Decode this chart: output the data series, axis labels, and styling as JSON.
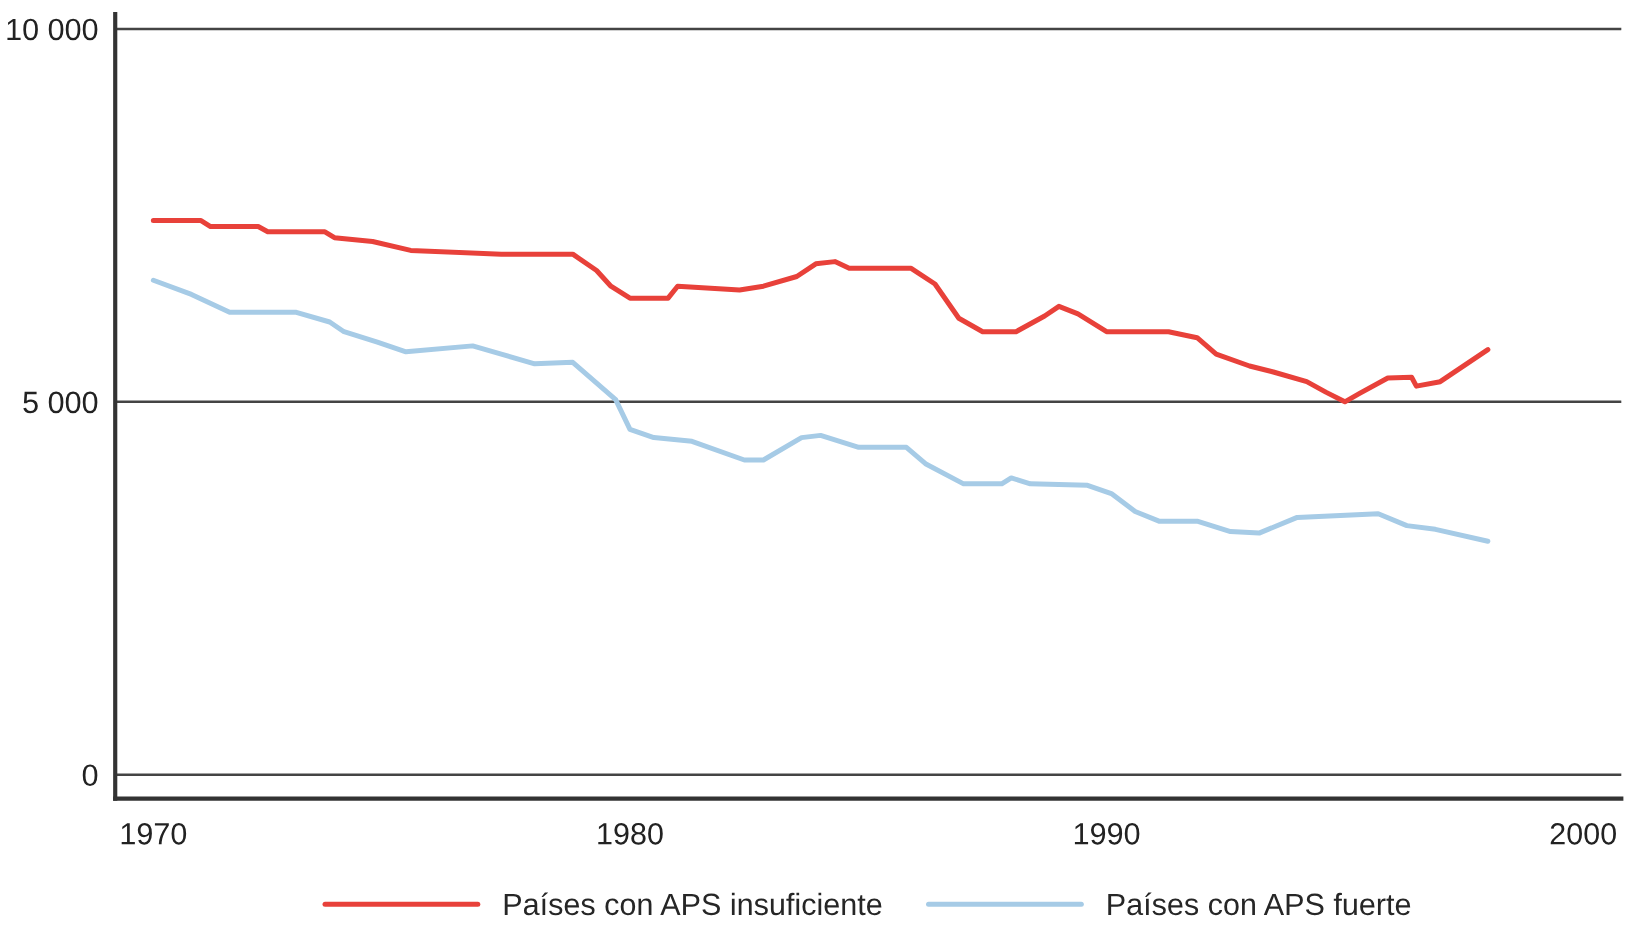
{
  "chart_data": {
    "type": "line",
    "xlim": [
      1969.2,
      2000.8
    ],
    "ylim": [
      -320,
      10200
    ],
    "xticks": [
      1970,
      1980,
      1990,
      2000
    ],
    "yticks": [
      {
        "value": 0,
        "label": "0"
      },
      {
        "value": 5000,
        "label": "5 000"
      },
      {
        "value": 10000,
        "label": "10 000"
      }
    ],
    "grid": "y",
    "legend": "bottom",
    "series": [
      {
        "name": "Países con APS insuficiente",
        "color": "#e8413a",
        "x": [
          1970,
          1971,
          1971.2,
          1972.2,
          1972.4,
          1973.6,
          1973.8,
          1974.6,
          1975.4,
          1977.3,
          1978.8,
          1979.3,
          1979.6,
          1980,
          1980.8,
          1981.0,
          1982.3,
          1982.8,
          1983.5,
          1983.9,
          1984.3,
          1984.6,
          1985.9,
          1986.4,
          1986.9,
          1987.4,
          1988.1,
          1988.7,
          1989.0,
          1989.4,
          1990.0,
          1991.3,
          1991.9,
          1992.3,
          1993.0,
          1993.5,
          1994.2,
          1994.6,
          1995.0,
          1995.3,
          1995.9,
          1996.4,
          1996.5,
          1997.0,
          1998.0
        ],
        "values": [
          7430,
          7430,
          7350,
          7350,
          7280,
          7280,
          7200,
          7150,
          7030,
          6980,
          6980,
          6760,
          6550,
          6390,
          6390,
          6550,
          6500,
          6550,
          6680,
          6850,
          6880,
          6790,
          6790,
          6580,
          6120,
          5940,
          5940,
          6150,
          6280,
          6180,
          5940,
          5940,
          5860,
          5640,
          5480,
          5400,
          5270,
          5130,
          5000,
          5110,
          5320,
          5330,
          5210,
          5270,
          5700
        ]
      },
      {
        "name": "Países con APS fuerte",
        "color": "#a6cbe6",
        "x": [
          1970,
          1970.8,
          1971.6,
          1973.0,
          1973.7,
          1974.0,
          1974.7,
          1975.3,
          1976.7,
          1977.3,
          1978.0,
          1978.8,
          1979.7,
          1980.0,
          1980.5,
          1981.3,
          1982.4,
          1982.8,
          1983.6,
          1984.0,
          1984.8,
          1985.8,
          1986.2,
          1987.0,
          1987.8,
          1988.0,
          1988.4,
          1989.6,
          1990.1,
          1990.6,
          1991.1,
          1991.9,
          1992.6,
          1993.2,
          1994.0,
          1995.7,
          1996.3,
          1996.9,
          1998.0
        ],
        "values": [
          6630,
          6440,
          6200,
          6200,
          6070,
          5940,
          5800,
          5670,
          5750,
          5640,
          5510,
          5530,
          5030,
          4630,
          4520,
          4470,
          4220,
          4220,
          4520,
          4550,
          4390,
          4390,
          4170,
          3900,
          3900,
          3980,
          3900,
          3880,
          3770,
          3530,
          3400,
          3400,
          3260,
          3240,
          3450,
          3500,
          3340,
          3290,
          3130
        ]
      }
    ]
  }
}
